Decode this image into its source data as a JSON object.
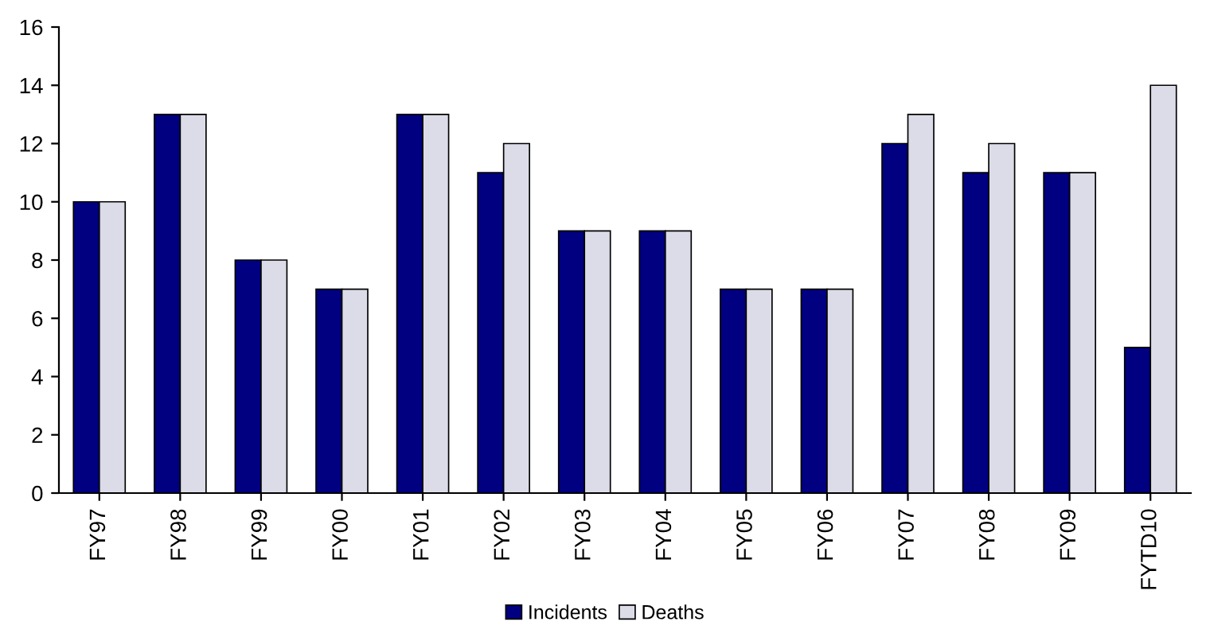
{
  "chart_data": {
    "type": "bar",
    "categories": [
      "FY97",
      "FY98",
      "FY99",
      "FY00",
      "FY01",
      "FY02",
      "FY03",
      "FY04",
      "FY05",
      "FY06",
      "FY07",
      "FY08",
      "FY09",
      "FYTD10"
    ],
    "series": [
      {
        "name": "Incidents",
        "color": "#000080",
        "values": [
          10,
          13,
          8,
          7,
          13,
          11,
          9,
          9,
          7,
          7,
          12,
          11,
          11,
          5
        ]
      },
      {
        "name": "Deaths",
        "color": "#dcdce8",
        "values": [
          10,
          13,
          8,
          7,
          13,
          12,
          9,
          9,
          7,
          7,
          13,
          12,
          11,
          14
        ]
      }
    ],
    "ylim": [
      0,
      16
    ],
    "yticks": [
      0,
      2,
      4,
      6,
      8,
      10,
      12,
      14,
      16
    ],
    "grid": false,
    "legend": "bottom"
  }
}
